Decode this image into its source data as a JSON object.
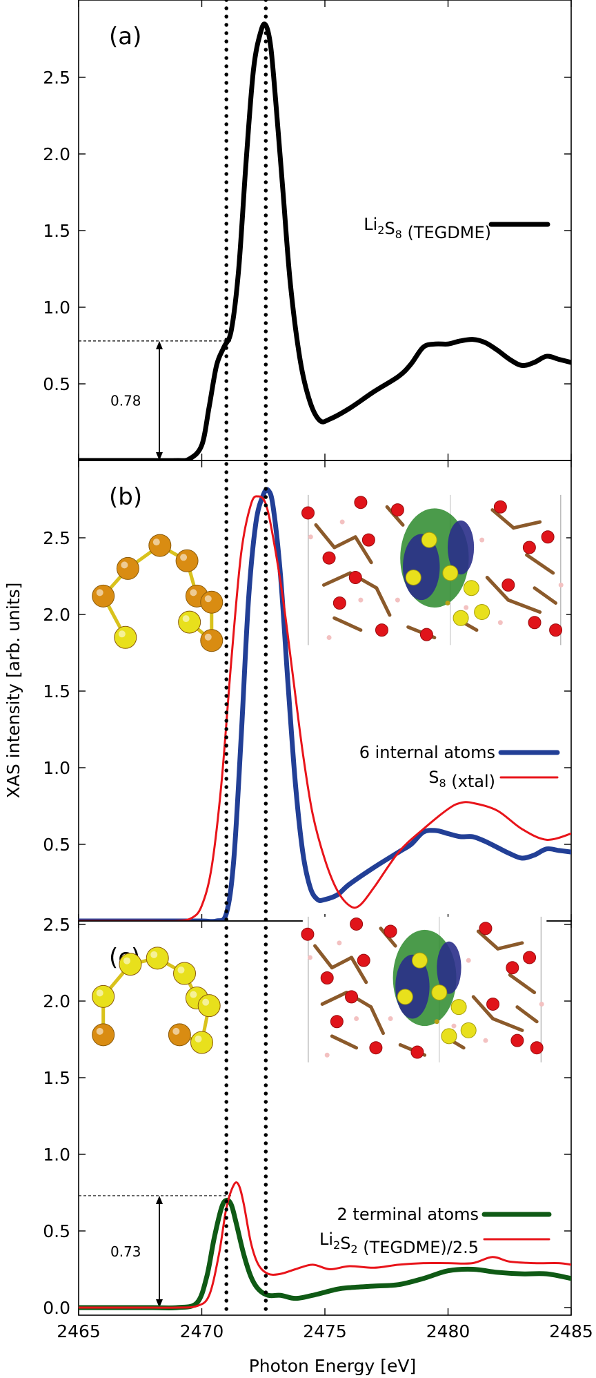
{
  "chart_data": {
    "type": "line",
    "xlabel": "Photon Energy [eV]",
    "ylabel": "XAS intensity [arb. units]",
    "xlim": [
      2465,
      2485
    ],
    "x_ticks": [
      "2465",
      "2470",
      "2475",
      "2480",
      "2485"
    ],
    "ylim": [
      0,
      2.95
    ],
    "vertical_dotted_lines_x": [
      2471.0,
      2472.6
    ],
    "panels": [
      {
        "label": "(a)",
        "y_ticks": [
          "0.5",
          "1.0",
          "1.5",
          "2.0",
          "2.5"
        ],
        "series": [
          {
            "name": "Li2S8 (TEGDME)",
            "legend_main": "Li",
            "legend_sub1": "2",
            "legend_mid": "S",
            "legend_sub2": "8",
            "legend_tail": " (TEGDME)",
            "color": "#000000",
            "width": 7,
            "x": [
              2465,
              2466,
              2467,
              2468,
              2469,
              2469.5,
              2470,
              2470.3,
              2470.6,
              2470.9,
              2471.2,
              2471.5,
              2471.8,
              2472.1,
              2472.4,
              2472.6,
              2472.8,
              2473.0,
              2473.3,
              2473.6,
              2474.0,
              2474.4,
              2474.8,
              2475.2,
              2476,
              2477,
              2478,
              2478.5,
              2479,
              2479.5,
              2480,
              2480.5,
              2481,
              2481.5,
              2482,
              2482.5,
              2483,
              2483.5,
              2484,
              2484.5,
              2485
            ],
            "y": [
              0,
              0,
              0,
              0,
              0,
              0.01,
              0.1,
              0.35,
              0.62,
              0.74,
              0.85,
              1.25,
              1.95,
              2.55,
              2.8,
              2.84,
              2.7,
              2.35,
              1.75,
              1.15,
              0.65,
              0.38,
              0.26,
              0.27,
              0.34,
              0.45,
              0.55,
              0.63,
              0.74,
              0.76,
              0.76,
              0.78,
              0.79,
              0.77,
              0.72,
              0.66,
              0.62,
              0.64,
              0.68,
              0.66,
              0.64
            ]
          }
        ],
        "annotation": {
          "value_label": "0.78",
          "y": 0.78,
          "x_end": 2471.2
        },
        "molecule": null,
        "inset": null
      },
      {
        "label": "(b)",
        "y_ticks": [
          "0.5",
          "1.0",
          "1.5",
          "2.0",
          "2.5"
        ],
        "series": [
          {
            "name": "6 internal atoms",
            "legend_main": "6 internal atoms",
            "color": "#223f96",
            "width": 7,
            "x": [
              2465,
              2466,
              2467,
              2468,
              2469,
              2470,
              2470.6,
              2471.0,
              2471.3,
              2471.6,
              2471.9,
              2472.2,
              2472.5,
              2472.7,
              2472.9,
              2473.2,
              2473.5,
              2473.8,
              2474.1,
              2474.4,
              2474.7,
              2475.0,
              2475.5,
              2476,
              2477,
              2478,
              2478.5,
              2479,
              2479.5,
              2480,
              2480.5,
              2481,
              2481.5,
              2482,
              2482.5,
              2483,
              2483.5,
              2484,
              2484.5,
              2485
            ],
            "y": [
              0,
              0,
              0,
              0,
              0,
              0,
              0.0,
              0.05,
              0.4,
              1.2,
              2.1,
              2.6,
              2.78,
              2.81,
              2.7,
              2.25,
              1.55,
              0.9,
              0.45,
              0.22,
              0.14,
              0.14,
              0.17,
              0.24,
              0.35,
              0.45,
              0.5,
              0.58,
              0.59,
              0.57,
              0.55,
              0.55,
              0.52,
              0.48,
              0.44,
              0.41,
              0.43,
              0.47,
              0.46,
              0.45
            ]
          },
          {
            "name": "S8 (xtal)",
            "legend_main": "S",
            "legend_sub1": "8",
            "legend_tail": " (xtal)",
            "color": "#e8141a",
            "width": 3,
            "x": [
              2465,
              2466,
              2467,
              2468,
              2469,
              2469.6,
              2470.0,
              2470.4,
              2470.8,
              2471.2,
              2471.6,
              2472.0,
              2472.3,
              2472.6,
              2472.9,
              2473.3,
              2473.7,
              2474.1,
              2474.5,
              2475.0,
              2475.5,
              2476.0,
              2476.4,
              2477,
              2478,
              2479,
              2480,
              2480.5,
              2481,
              2482,
              2483,
              2484,
              2485
            ],
            "y": [
              0,
              0,
              0,
              0,
              0,
              0.02,
              0.1,
              0.35,
              0.9,
              1.7,
              2.4,
              2.72,
              2.77,
              2.72,
              2.5,
              2.1,
              1.6,
              1.1,
              0.7,
              0.4,
              0.2,
              0.1,
              0.1,
              0.22,
              0.45,
              0.6,
              0.73,
              0.77,
              0.77,
              0.72,
              0.6,
              0.53,
              0.57
            ]
          }
        ],
        "annotation": null,
        "molecule": {
          "atoms": [
            {
              "x": 2467.0,
              "y": 2.3,
              "c": "#d98c12"
            },
            {
              "x": 2468.3,
              "y": 2.45,
              "c": "#d98c12"
            },
            {
              "x": 2469.4,
              "y": 2.35,
              "c": "#d98c12"
            },
            {
              "x": 2466.0,
              "y": 2.12,
              "c": "#d98c12"
            },
            {
              "x": 2469.8,
              "y": 2.12,
              "c": "#d98c12"
            },
            {
              "x": 2470.4,
              "y": 2.08,
              "c": "#d98c12"
            },
            {
              "x": 2466.9,
              "y": 1.85,
              "c": "#e8e01c"
            },
            {
              "x": 2469.5,
              "y": 1.95,
              "c": "#e8e01c"
            },
            {
              "x": 2470.4,
              "y": 1.83,
              "c": "#d98c12"
            }
          ],
          "bonds": [
            [
              3,
              0
            ],
            [
              0,
              1
            ],
            [
              1,
              2
            ],
            [
              2,
              4
            ],
            [
              4,
              5
            ],
            [
              5,
              8
            ],
            [
              3,
              6
            ],
            [
              7,
              8
            ]
          ]
        },
        "inset": {
          "x0": 2474.1,
          "x1": 2484.8,
          "y0": 1.8,
          "y1": 2.78
        }
      },
      {
        "label": "(c)",
        "y_ticks": [
          "0.0",
          "0.5",
          "1.0",
          "1.5",
          "2.0",
          "2.5"
        ],
        "series": [
          {
            "name": "2 terminal atoms",
            "legend_main": "2 terminal atoms",
            "color": "#0f5a15",
            "width": 7,
            "x": [
              2465,
              2466,
              2467,
              2468,
              2469,
              2469.8,
              2470.2,
              2470.5,
              2470.8,
              2471.0,
              2471.2,
              2471.4,
              2471.7,
              2472.0,
              2472.3,
              2472.7,
              2473.2,
              2473.8,
              2474.5,
              2475.5,
              2476.0,
              2477,
              2478,
              2479,
              2480,
              2481,
              2482,
              2483,
              2484,
              2485
            ],
            "y": [
              0,
              0,
              0,
              0,
              0,
              0.03,
              0.2,
              0.45,
              0.65,
              0.7,
              0.67,
              0.55,
              0.35,
              0.2,
              0.12,
              0.08,
              0.08,
              0.06,
              0.08,
              0.12,
              0.13,
              0.14,
              0.15,
              0.19,
              0.24,
              0.25,
              0.23,
              0.22,
              0.22,
              0.19
            ]
          },
          {
            "name": "Li2S2 (TEGDME)/2.5",
            "legend_main": "Li",
            "legend_sub1": "2",
            "legend_mid": "S",
            "legend_sub2": "2",
            "legend_tail": " (TEGDME)/2.5",
            "color": "#e8141a",
            "width": 3,
            "x": [
              2465,
              2466,
              2467,
              2468,
              2469,
              2469.8,
              2470.3,
              2470.7,
              2471.0,
              2471.3,
              2471.5,
              2471.7,
              2472.0,
              2472.3,
              2472.7,
              2473.2,
              2473.8,
              2474.5,
              2475.2,
              2476,
              2477,
              2478,
              2479,
              2480,
              2481,
              2481.8,
              2482.5,
              2483.5,
              2484.5,
              2485
            ],
            "y": [
              0,
              0,
              0,
              0,
              0,
              0.01,
              0.08,
              0.35,
              0.65,
              0.8,
              0.8,
              0.68,
              0.42,
              0.28,
              0.22,
              0.22,
              0.25,
              0.28,
              0.25,
              0.27,
              0.26,
              0.28,
              0.29,
              0.29,
              0.29,
              0.33,
              0.3,
              0.29,
              0.29,
              0.28
            ]
          }
        ],
        "annotation": {
          "value_label": "0.73",
          "y": 0.73,
          "x_end": 2471.2
        },
        "molecule": {
          "atoms": [
            {
              "x": 2467.1,
              "y": 2.24,
              "c": "#e8e01c"
            },
            {
              "x": 2468.2,
              "y": 2.28,
              "c": "#e8e01c"
            },
            {
              "x": 2469.3,
              "y": 2.18,
              "c": "#e8e01c"
            },
            {
              "x": 2466.0,
              "y": 2.03,
              "c": "#e8e01c"
            },
            {
              "x": 2469.8,
              "y": 2.02,
              "c": "#e8e01c"
            },
            {
              "x": 2470.3,
              "y": 1.97,
              "c": "#e8e01c"
            },
            {
              "x": 2466.0,
              "y": 1.78,
              "c": "#d98c12"
            },
            {
              "x": 2469.1,
              "y": 1.78,
              "c": "#d98c12"
            },
            {
              "x": 2470.0,
              "y": 1.73,
              "c": "#e8e01c"
            }
          ],
          "bonds": [
            [
              3,
              0
            ],
            [
              0,
              1
            ],
            [
              1,
              2
            ],
            [
              2,
              4
            ],
            [
              4,
              5
            ],
            [
              5,
              8
            ],
            [
              3,
              6
            ],
            [
              7,
              8
            ]
          ]
        },
        "inset": {
          "x0": 2474.1,
          "x1": 2484.0,
          "y0": 1.6,
          "y1": 2.55
        }
      }
    ]
  }
}
